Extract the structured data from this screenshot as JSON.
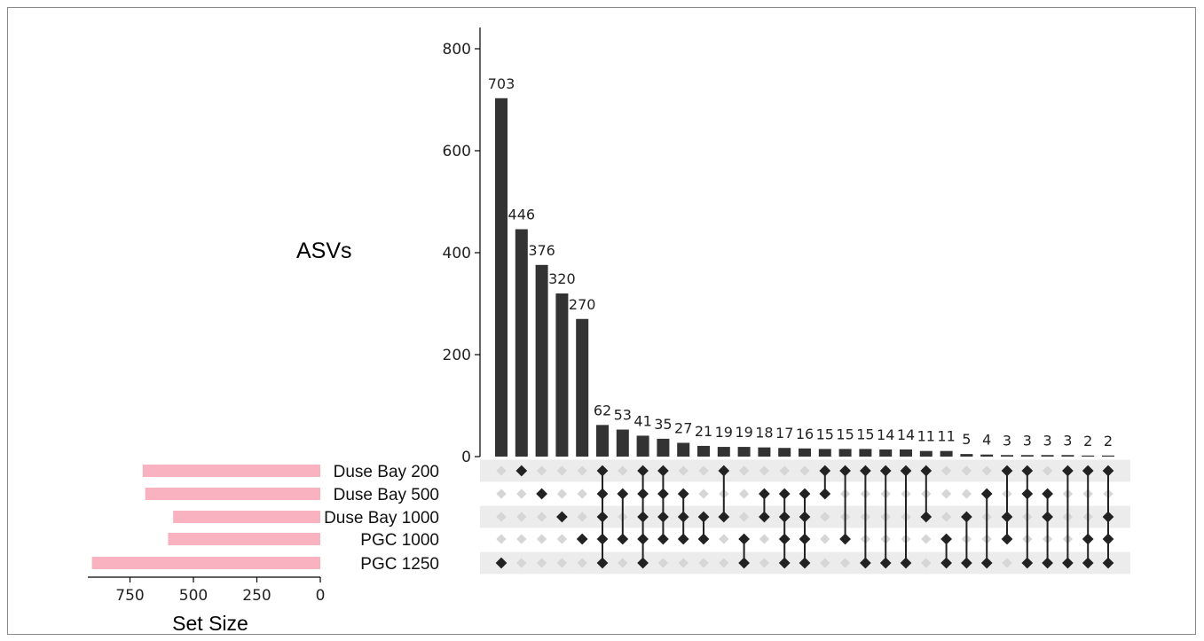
{
  "chart_data": {
    "type": "upset",
    "ylabel": "ASVs",
    "xlabel_setsize": "Set Size",
    "ylim": [
      0,
      850
    ],
    "yticks": [
      0,
      200,
      400,
      600,
      800
    ],
    "setsize_ticks": [
      750,
      500,
      250,
      0
    ],
    "setsize_lim": [
      0,
      950
    ],
    "set_bar_color": "#f9b2bf",
    "bar_color": "#333333",
    "sets": [
      {
        "name": "Duse Bay 200",
        "size": 700
      },
      {
        "name": "Duse Bay 500",
        "size": 690
      },
      {
        "name": "Duse Bay 1000",
        "size": 580
      },
      {
        "name": "PGC 1000",
        "size": 600
      },
      {
        "name": "PGC 1250",
        "size": 900
      }
    ],
    "intersections": [
      {
        "value": 703,
        "label": "703",
        "members": [
          4
        ]
      },
      {
        "value": 446,
        "label": "446",
        "members": [
          0
        ]
      },
      {
        "value": 376,
        "label": "376",
        "members": [
          1
        ]
      },
      {
        "value": 320,
        "label": "320",
        "members": [
          2
        ]
      },
      {
        "value": 270,
        "label": "270",
        "members": [
          3
        ]
      },
      {
        "value": 62,
        "label": "62",
        "members": [
          0,
          1,
          2,
          3,
          4
        ]
      },
      {
        "value": 53,
        "label": "53",
        "members": [
          1,
          3
        ]
      },
      {
        "value": 41,
        "label": "41",
        "members": [
          0,
          1,
          2,
          3,
          4
        ]
      },
      {
        "value": 35,
        "label": "35",
        "members": [
          0,
          1,
          2,
          3
        ]
      },
      {
        "value": 27,
        "label": "27",
        "members": [
          1,
          2,
          3
        ]
      },
      {
        "value": 21,
        "label": "21",
        "members": [
          2,
          3
        ]
      },
      {
        "value": 19,
        "label": "19",
        "members": [
          0,
          2
        ]
      },
      {
        "value": 19,
        "label": "19",
        "members": [
          3,
          4
        ]
      },
      {
        "value": 18,
        "label": "18",
        "members": [
          1,
          2
        ]
      },
      {
        "value": 17,
        "label": "17",
        "members": [
          1,
          2,
          3,
          4
        ]
      },
      {
        "value": 16,
        "label": "16",
        "members": [
          1,
          2,
          3,
          4
        ]
      },
      {
        "value": 15,
        "label": "15",
        "members": [
          0,
          1
        ]
      },
      {
        "value": 15,
        "label": "15",
        "members": [
          0,
          3
        ]
      },
      {
        "value": 15,
        "label": "15",
        "members": [
          0,
          4
        ]
      },
      {
        "value": 14,
        "label": "14",
        "members": [
          0,
          4
        ]
      },
      {
        "value": 14,
        "label": "14",
        "members": [
          0,
          4
        ]
      },
      {
        "value": 11,
        "label": "11",
        "members": [
          0,
          2
        ]
      },
      {
        "value": 11,
        "label": "11",
        "members": [
          3,
          4
        ]
      },
      {
        "value": 5,
        "label": "5",
        "members": [
          2,
          4
        ]
      },
      {
        "value": 4,
        "label": "4",
        "members": [
          1,
          4
        ]
      },
      {
        "value": 3,
        "label": "3",
        "members": [
          0,
          2,
          3
        ]
      },
      {
        "value": 3,
        "label": "3",
        "members": [
          0,
          1,
          4
        ]
      },
      {
        "value": 3,
        "label": "3",
        "members": [
          1,
          2,
          4
        ]
      },
      {
        "value": 3,
        "label": "3",
        "members": [
          0,
          4
        ]
      },
      {
        "value": 2,
        "label": "2",
        "members": [
          0,
          3,
          4
        ]
      },
      {
        "value": 2,
        "label": "2",
        "members": [
          0,
          2,
          3,
          4
        ]
      }
    ]
  }
}
